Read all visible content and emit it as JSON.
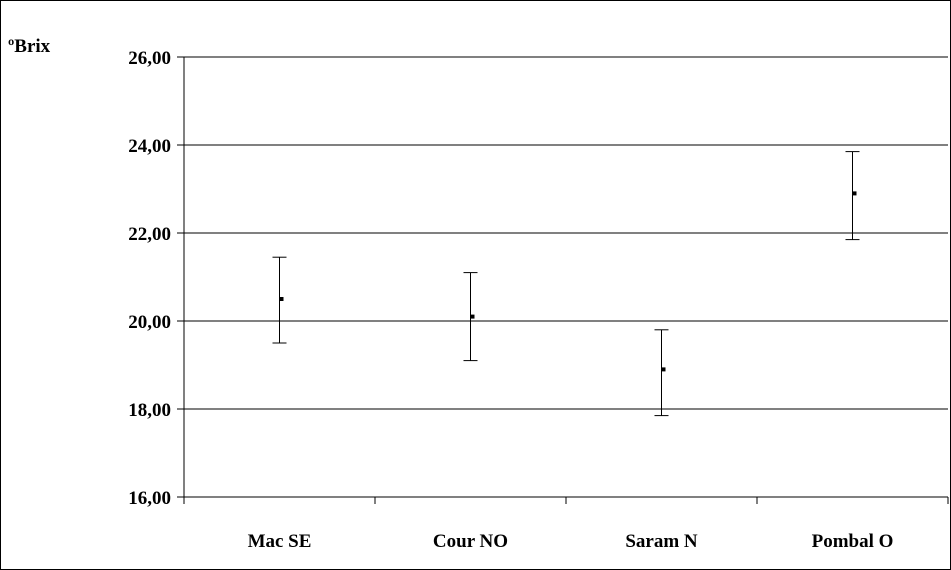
{
  "chart_data": {
    "type": "errorbar",
    "ylabel": "ºBrix",
    "xlabel": "",
    "title": "",
    "categories": [
      "Mac SE",
      "Cour NO",
      "Saram N",
      "Pombal O"
    ],
    "series": [
      {
        "mean": [
          20.5,
          20.1,
          18.9,
          22.9
        ],
        "upper": [
          21.45,
          21.1,
          19.8,
          23.85
        ],
        "lower": [
          19.5,
          19.1,
          17.85,
          21.85
        ]
      }
    ],
    "ylim": [
      16,
      26
    ],
    "yticks": [
      26,
      24,
      22,
      20,
      18,
      16
    ],
    "ytick_labels": [
      "26,00",
      "24,00",
      "22,00",
      "20,00",
      "18,00",
      "16,00"
    ],
    "grid": true,
    "colors": {
      "axis": "#000000",
      "grid": "#000000",
      "marker": "#000000",
      "background": "#ffffff"
    }
  }
}
